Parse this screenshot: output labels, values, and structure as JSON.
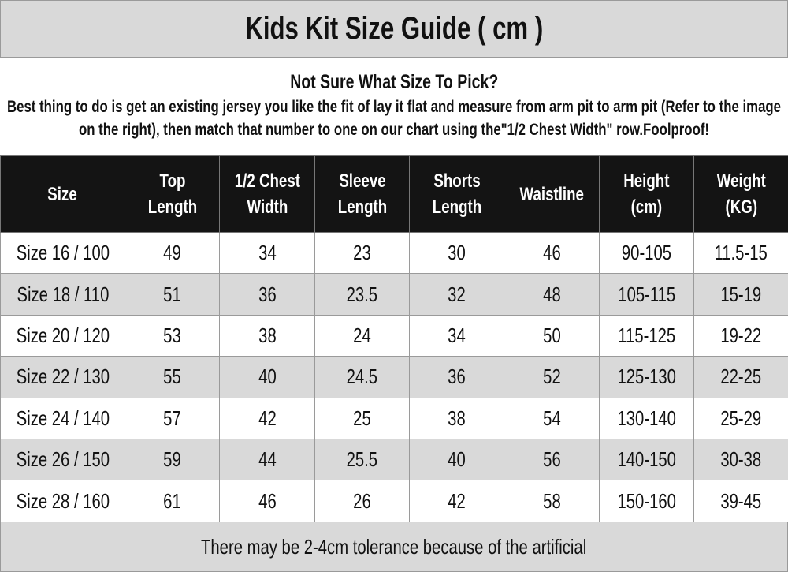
{
  "title": "Kids Kit Size Guide ( cm )",
  "intro": {
    "heading": "Not Sure What Size To Pick?",
    "text": "Best thing to do is get an existing jersey you like the fit of lay it flat and measure from arm pit to arm pit (Refer to the image on the right), then match that number to one on our chart using the\"1/2 Chest Width\" row.Foolproof!"
  },
  "table": {
    "headers": [
      [
        "Size",
        ""
      ],
      [
        "Top",
        "Length"
      ],
      [
        "1/2 Chest",
        "Width"
      ],
      [
        "Sleeve",
        "Length"
      ],
      [
        "Shorts",
        "Length"
      ],
      [
        "Waistline",
        ""
      ],
      [
        "Height",
        "(cm)"
      ],
      [
        "Weight",
        "(KG)"
      ]
    ],
    "rows": [
      [
        "Size 16 / 100",
        "49",
        "34",
        "23",
        "30",
        "46",
        "90-105",
        "11.5-15"
      ],
      [
        "Size 18 / 110",
        "51",
        "36",
        "23.5",
        "32",
        "48",
        "105-115",
        "15-19"
      ],
      [
        "Size 20 / 120",
        "53",
        "38",
        "24",
        "34",
        "50",
        "115-125",
        "19-22"
      ],
      [
        "Size 22 / 130",
        "55",
        "40",
        "24.5",
        "36",
        "52",
        "125-130",
        "22-25"
      ],
      [
        "Size 24 / 140",
        "57",
        "42",
        "25",
        "38",
        "54",
        "130-140",
        "25-29"
      ],
      [
        "Size 26 / 150",
        "59",
        "44",
        "25.5",
        "40",
        "56",
        "140-150",
        "30-38"
      ],
      [
        "Size 28 / 160",
        "61",
        "46",
        "26",
        "42",
        "58",
        "150-160",
        "39-45"
      ]
    ]
  },
  "footer": "There may be 2-4cm tolerance because of the artificial",
  "colors": {
    "header_bg": "#141414",
    "band_bg": "#d9d9d9"
  }
}
